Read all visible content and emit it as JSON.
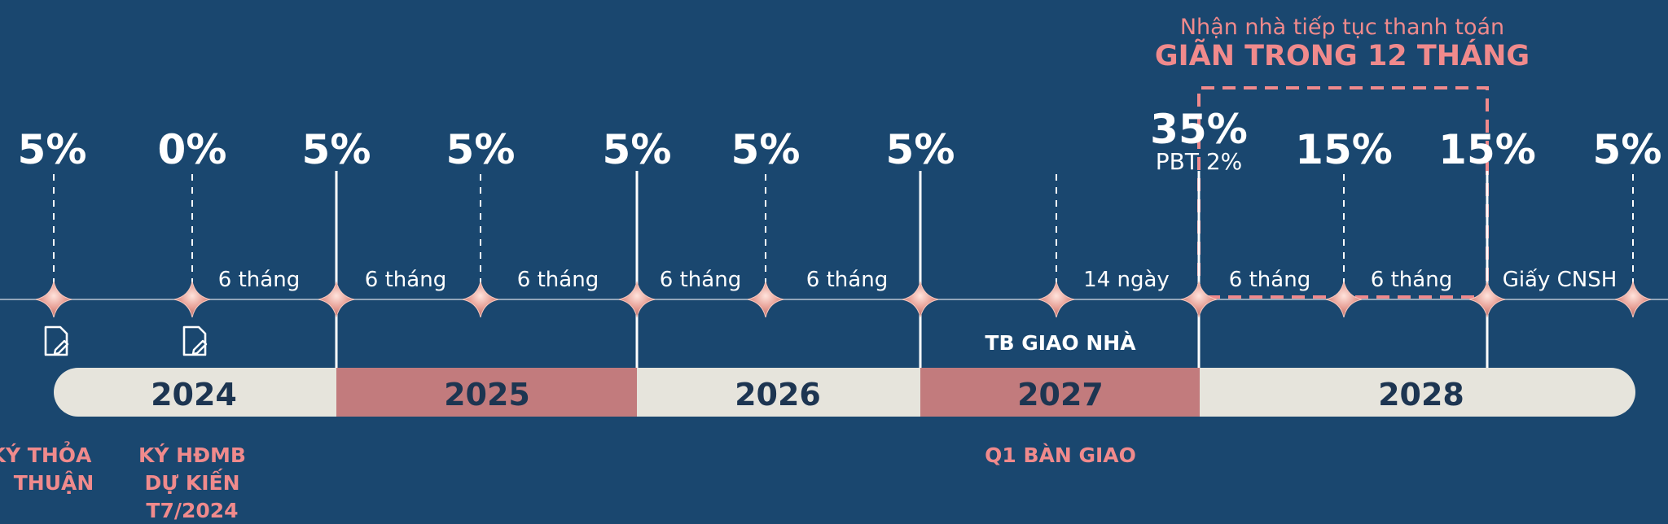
{
  "header": {
    "note": "Nhận nhà tiếp tục thanh toán",
    "highlight": "GIÃN TRONG 12 THÁNG"
  },
  "milestones": [
    {
      "percent": "5%"
    },
    {
      "percent": "0%"
    },
    {
      "percent": "5%"
    },
    {
      "percent": "5%"
    },
    {
      "percent": "5%"
    },
    {
      "percent": "5%"
    },
    {
      "percent": "5%"
    },
    {
      "percent": "35%",
      "sub": "PBT 2%"
    },
    {
      "percent": "15%"
    },
    {
      "percent": "15%"
    },
    {
      "percent": "5%"
    }
  ],
  "intervals": [
    "6 tháng",
    "6 tháng",
    "6 tháng",
    "6 tháng",
    "6 tháng",
    "14 ngày",
    "6 tháng",
    "6 tháng",
    "Giấy CNSH"
  ],
  "years": [
    "2024",
    "2025",
    "2026",
    "2027",
    "2028"
  ],
  "notice_label": "TB GIAO NHÀ",
  "bottom_labels": {
    "sign_agreement": [
      "KÝ THỎA",
      "THUẬN"
    ],
    "sign_contract": [
      "KÝ HĐMB",
      "DỰ KIẾN",
      "T7/2024"
    ],
    "handover": "Q1 BÀN GIAO"
  },
  "colors": {
    "background": "#1a476f",
    "accent": "#f08a8c",
    "bar_light": "#e6e4dc",
    "bar_rose": "#c27b7d",
    "text_dark": "#1d3551",
    "white": "#ffffff"
  },
  "icons": {
    "document": "document-edit-icon",
    "diamond": "diamond-marker-icon"
  }
}
